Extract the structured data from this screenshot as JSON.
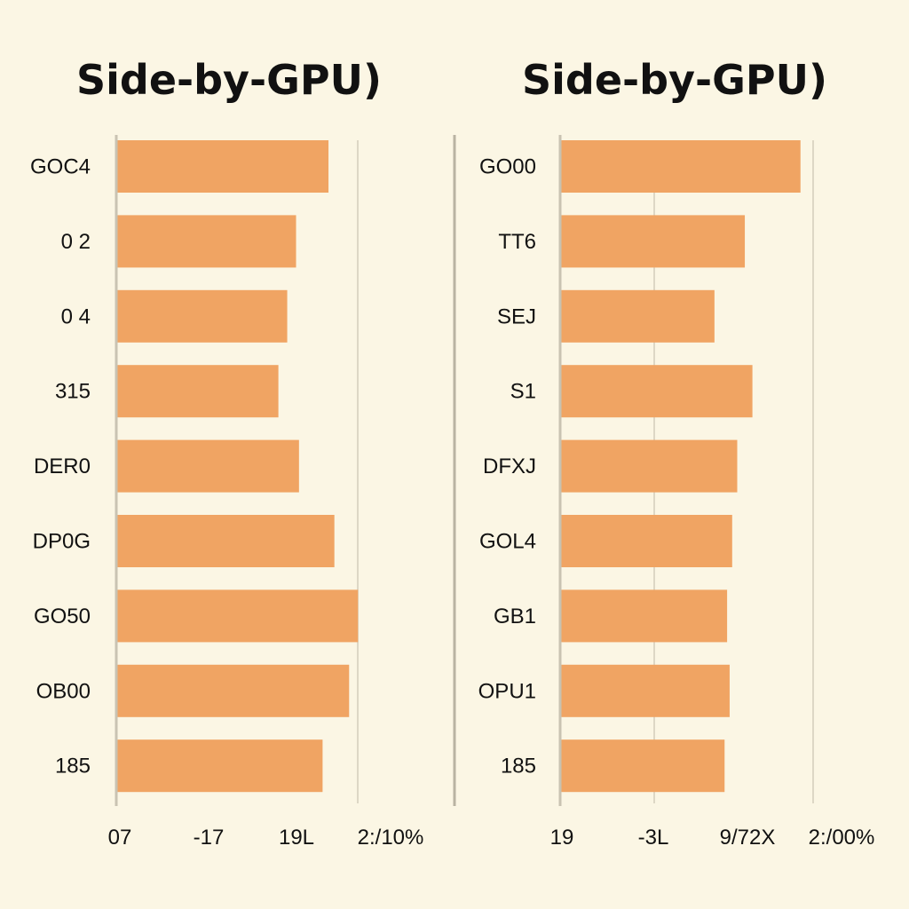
{
  "page": {
    "background": "#FBF6E4"
  },
  "chart_data": [
    {
      "type": "bar",
      "orientation": "horizontal",
      "title": "Side-by-GPU)",
      "categories": [
        "GOC4",
        "0 2",
        "0 4",
        "315",
        "DER0",
        "DP0G",
        "GO50",
        "OB00",
        "185"
      ],
      "values": [
        72,
        61,
        58,
        55,
        62,
        74,
        82,
        79,
        70
      ],
      "xlim": [
        0,
        100
      ],
      "x_tick_labels": [
        "07",
        "-17",
        "19L",
        "2:/10%"
      ],
      "x_tick_values": [
        0,
        33,
        67,
        100
      ],
      "bar_color": "#F0A463",
      "grid": true
    },
    {
      "type": "bar",
      "orientation": "horizontal",
      "title": "Side-by-GPU)",
      "categories": [
        "GO00",
        "TT6",
        "SEJ",
        "S1",
        "DFXJ",
        "GOL4",
        "GB1",
        "OPU1",
        "185"
      ],
      "values": [
        95,
        73,
        61,
        76,
        70,
        68,
        66,
        67,
        65
      ],
      "xlim": [
        0,
        100
      ],
      "x_tick_labels": [
        "19",
        "-3L",
        "9/72X",
        "2:/00%"
      ],
      "x_tick_values": [
        0,
        33,
        67,
        100
      ],
      "bar_color": "#F0A463",
      "grid": true
    }
  ]
}
